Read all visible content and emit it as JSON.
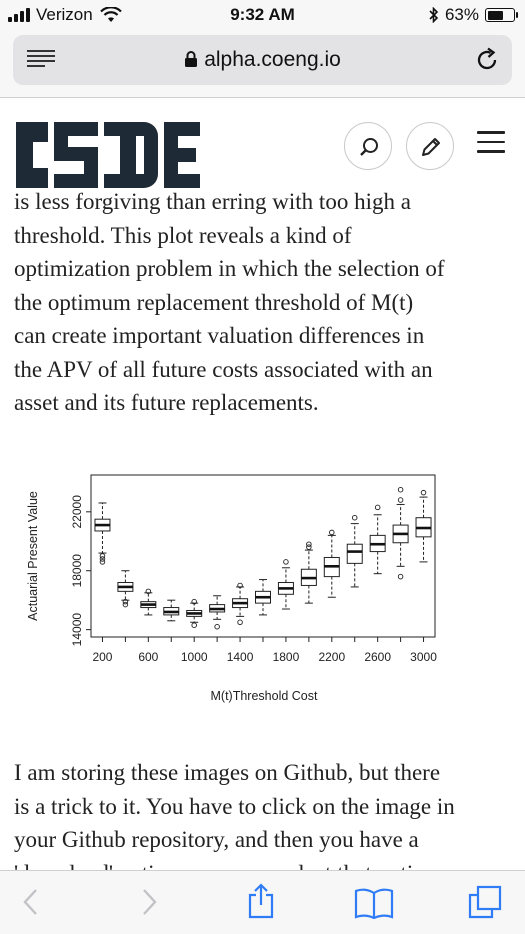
{
  "status_bar": {
    "carrier": "Verizon",
    "time": "9:32 AM",
    "battery": "63%",
    "battery_level": 0.63
  },
  "browser": {
    "url": "alpha.coeng.io"
  },
  "article": {
    "para1_lines": [
      "is less forgiving than erring with too high a",
      "threshold. This plot reveals a kind of",
      "optimization problem in which the selection of",
      "the optimum replacement threshold of M(t)",
      "can create important valuation differences in",
      "the APV of all future costs associated with an",
      "asset and its future replacements."
    ],
    "para2_lines": [
      "I am storing these images on Github, but there",
      "is a trick to it. You have to click on the image in",
      "your Github repository, and then you have a",
      "'download' option; once you select that option"
    ]
  },
  "chart_data": {
    "type": "boxplot",
    "xlabel": "M(t)Threshold Cost",
    "ylabel": "Actuarial Present Value",
    "x_tick_labels": [
      "200",
      "600",
      "1000",
      "1400",
      "1800",
      "2200",
      "2600",
      "3000"
    ],
    "y_tick_labels": [
      "14000",
      "18000",
      "22000"
    ],
    "ylim": [
      13500,
      24500
    ],
    "boxes": [
      {
        "x": 200,
        "wlo": 19200,
        "q1": 20700,
        "median": 21100,
        "q3": 21500,
        "whi": 22600
      },
      {
        "x": 400,
        "wlo": 16000,
        "q1": 16600,
        "median": 16900,
        "q3": 17200,
        "whi": 18000
      },
      {
        "x": 600,
        "wlo": 15000,
        "q1": 15500,
        "median": 15700,
        "q3": 15900,
        "whi": 16500
      },
      {
        "x": 800,
        "wlo": 14600,
        "q1": 15000,
        "median": 15200,
        "q3": 15500,
        "whi": 16000
      },
      {
        "x": 1000,
        "wlo": 14500,
        "q1": 14900,
        "median": 15100,
        "q3": 15300,
        "whi": 15800
      },
      {
        "x": 1200,
        "wlo": 14700,
        "q1": 15200,
        "median": 15400,
        "q3": 15700,
        "whi": 16300
      },
      {
        "x": 1400,
        "wlo": 14900,
        "q1": 15500,
        "median": 15800,
        "q3": 16100,
        "whi": 16900
      },
      {
        "x": 1600,
        "wlo": 15000,
        "q1": 15800,
        "median": 16200,
        "q3": 16600,
        "whi": 17400
      },
      {
        "x": 1800,
        "wlo": 15400,
        "q1": 16400,
        "median": 16800,
        "q3": 17200,
        "whi": 18200
      },
      {
        "x": 2000,
        "wlo": 15800,
        "q1": 17000,
        "median": 17500,
        "q3": 18100,
        "whi": 19400
      },
      {
        "x": 2200,
        "wlo": 16200,
        "q1": 17600,
        "median": 18300,
        "q3": 18900,
        "whi": 20400
      },
      {
        "x": 2400,
        "wlo": 16900,
        "q1": 18500,
        "median": 19300,
        "q3": 19800,
        "whi": 21200
      },
      {
        "x": 2600,
        "wlo": 17800,
        "q1": 19300,
        "median": 19800,
        "q3": 20400,
        "whi": 21800
      },
      {
        "x": 2800,
        "wlo": 18300,
        "q1": 19900,
        "median": 20500,
        "q3": 21100,
        "whi": 22500
      },
      {
        "x": 3000,
        "wlo": 18600,
        "q1": 20300,
        "median": 20900,
        "q3": 21600,
        "whi": 23000
      }
    ],
    "outliers": [
      [
        200,
        19000
      ],
      [
        200,
        18800
      ],
      [
        200,
        18600
      ],
      [
        400,
        15900
      ],
      [
        400,
        15700
      ],
      [
        600,
        16600
      ],
      [
        1000,
        14300
      ],
      [
        1000,
        15900
      ],
      [
        1200,
        14200
      ],
      [
        1400,
        14500
      ],
      [
        1400,
        17000
      ],
      [
        1800,
        18600
      ],
      [
        2000,
        19600
      ],
      [
        2000,
        19800
      ],
      [
        2200,
        20600
      ],
      [
        2400,
        21600
      ],
      [
        2600,
        22300
      ],
      [
        2800,
        17600
      ],
      [
        2800,
        23500
      ],
      [
        2800,
        22800
      ],
      [
        3000,
        23300
      ]
    ]
  },
  "colors": {
    "bar_bg": "#f7f7f7",
    "url_bg": "#e3e3e5",
    "logo": "#1e2a36",
    "ios_blue": "#2f7cf6"
  },
  "icons": {
    "reader": "reader-mode-icon",
    "lock": "lock-icon",
    "reload": "reload-icon",
    "search": "search-icon",
    "edit": "pencil-icon",
    "menu": "hamburger-menu-icon",
    "back": "chevron-left-icon",
    "forward": "chevron-right-icon",
    "share": "share-icon",
    "bookmarks": "book-icon",
    "tabs": "tabs-icon"
  }
}
